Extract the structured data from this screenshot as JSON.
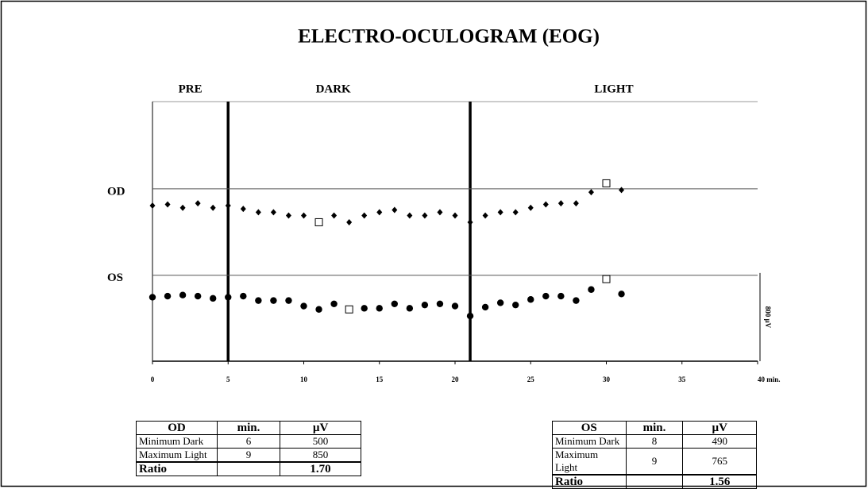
{
  "chart_data": {
    "type": "scatter",
    "title": "ELECTRO-OCULOGRAM (EOG)",
    "x": [
      0,
      1,
      2,
      3,
      4,
      5,
      6,
      7,
      8,
      9,
      10,
      11,
      12,
      13,
      14,
      15,
      16,
      17,
      18,
      19,
      20,
      21,
      22,
      23,
      24,
      25,
      26,
      27,
      28,
      29,
      30,
      31
    ],
    "series": [
      {
        "name": "OD",
        "marker": "diamond",
        "color": "#000000",
        "ylim": [
          -750,
          1585
        ],
        "reference_value": 800,
        "highlighted": [
          11,
          30
        ],
        "values": [
          650,
          660,
          630,
          670,
          630,
          650,
          620,
          590,
          590,
          560,
          560,
          500,
          560,
          500,
          560,
          590,
          610,
          560,
          560,
          590,
          560,
          500,
          560,
          590,
          590,
          630,
          660,
          670,
          670,
          770,
          850,
          790
        ]
      },
      {
        "name": "OS",
        "marker": "circle",
        "color": "#000000",
        "ylim": [
          20,
          2375
        ],
        "reference_value": 800,
        "highlighted": [
          13,
          30
        ],
        "values": [
          600,
          610,
          620,
          610,
          590,
          600,
          610,
          570,
          570,
          570,
          520,
          490,
          540,
          490,
          500,
          500,
          540,
          500,
          530,
          540,
          520,
          430,
          510,
          550,
          530,
          580,
          610,
          610,
          570,
          670,
          765,
          630
        ]
      }
    ],
    "xlim": [
      0,
      40
    ],
    "xticks": [
      0,
      5,
      10,
      15,
      20,
      25,
      30,
      35,
      {
        "value": 40,
        "label": "40 min."
      }
    ],
    "phases": [
      {
        "name": "PRE",
        "start": 0,
        "end": 5
      },
      {
        "name": "DARK",
        "start": 5,
        "end": 21
      },
      {
        "name": "LIGHT",
        "start": 21,
        "end": 40
      }
    ],
    "scale_bar": {
      "value": 800,
      "label": "800 µV"
    }
  },
  "tables": [
    {
      "header": [
        "OD",
        "min.",
        "µV"
      ],
      "rows": [
        [
          "Minimum Dark",
          "6",
          "500"
        ],
        [
          "Maximum Light",
          "9",
          "850"
        ],
        [
          "Ratio",
          "",
          "1.70"
        ]
      ]
    },
    {
      "header": [
        "OS",
        "min.",
        "µV"
      ],
      "rows": [
        [
          "Minimum Dark",
          "8",
          "490"
        ],
        [
          "Maximum Light",
          "9",
          "765"
        ],
        [
          "Ratio",
          "",
          "1.56"
        ]
      ]
    }
  ]
}
